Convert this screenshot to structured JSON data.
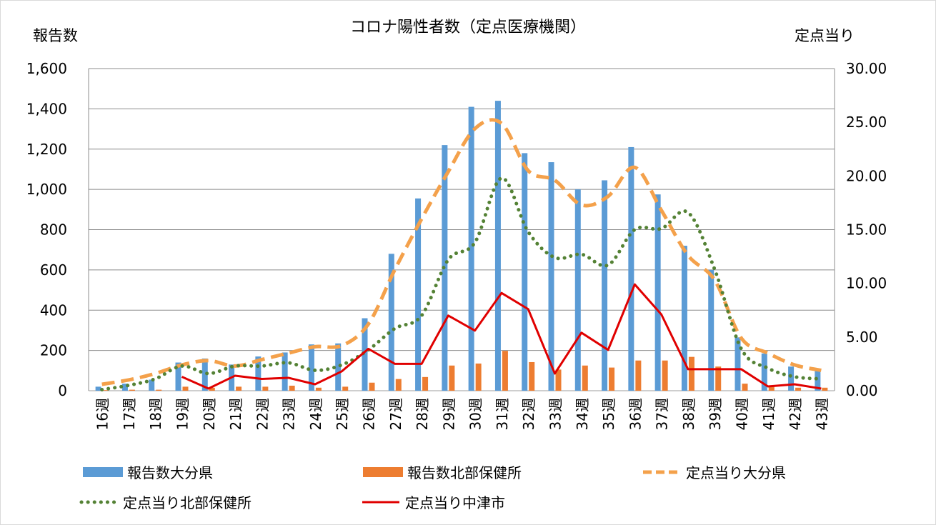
{
  "chart_data": {
    "type": "bar",
    "title": "コロナ陽性者数（定点医療機関）",
    "ylabel": "報告数",
    "y2label": "定点当り",
    "ylim": [
      0,
      1600
    ],
    "y2lim": [
      0,
      30
    ],
    "yticks": [
      "0",
      "200",
      "400",
      "600",
      "800",
      "1,000",
      "1,200",
      "1,400",
      "1,600"
    ],
    "y2ticks": [
      "0.00",
      "5.00",
      "10.00",
      "15.00",
      "20.00",
      "25.00",
      "30.00"
    ],
    "categories": [
      "16週",
      "17週",
      "18週",
      "19週",
      "20週",
      "21週",
      "22週",
      "23週",
      "24週",
      "25週",
      "26週",
      "27週",
      "28週",
      "29週",
      "30週",
      "31週",
      "32週",
      "33週",
      "34週",
      "35週",
      "36週",
      "37週",
      "38週",
      "39週",
      "40週",
      "41週",
      "42週",
      "43週"
    ],
    "series": [
      {
        "name": "報告数大分県",
        "kind": "bar",
        "axis": "left",
        "color": "#5B9BD5",
        "values": [
          20,
          35,
          55,
          140,
          160,
          130,
          170,
          190,
          230,
          235,
          360,
          680,
          955,
          1220,
          1410,
          1440,
          1180,
          1135,
          1000,
          1045,
          1210,
          975,
          720,
          600,
          265,
          185,
          120,
          110
        ]
      },
      {
        "name": "報告数北部保健所",
        "kind": "bar",
        "axis": "left",
        "color": "#ED7D31",
        "values": [
          3,
          5,
          5,
          20,
          15,
          20,
          20,
          25,
          15,
          20,
          40,
          58,
          68,
          125,
          135,
          198,
          142,
          105,
          125,
          115,
          150,
          150,
          168,
          120,
          35,
          20,
          15,
          15
        ]
      },
      {
        "name": "定点当り大分県",
        "kind": "line",
        "style": "dashed",
        "axis": "right",
        "color": "#F4A14B",
        "values": [
          0.6,
          1.0,
          1.6,
          2.4,
          2.8,
          2.3,
          2.9,
          3.5,
          4.1,
          4.2,
          6.2,
          11.3,
          16.0,
          20.4,
          24.4,
          24.9,
          20.5,
          19.6,
          17.3,
          18.1,
          20.8,
          16.8,
          12.6,
          10.3,
          4.9,
          3.5,
          2.4,
          1.9
        ]
      },
      {
        "name": "定点当り北部保健所",
        "kind": "line",
        "style": "dotted",
        "axis": "right",
        "color": "#548235",
        "values": [
          0.1,
          0.5,
          1.1,
          2.3,
          1.6,
          2.3,
          2.3,
          2.6,
          1.9,
          2.4,
          3.8,
          5.8,
          7.0,
          12.2,
          13.8,
          19.8,
          14.8,
          12.4,
          12.7,
          11.7,
          15.0,
          15.1,
          16.6,
          11.3,
          3.9,
          2.1,
          1.3,
          1.1
        ]
      },
      {
        "name": "定点当り中津市",
        "kind": "line",
        "style": "solid",
        "axis": "right",
        "color": "#E00000",
        "values": [
          null,
          null,
          null,
          1.3,
          0.2,
          1.4,
          1.1,
          1.2,
          0.6,
          1.8,
          3.9,
          2.5,
          2.5,
          7.0,
          5.6,
          9.1,
          7.6,
          1.6,
          5.4,
          3.8,
          9.9,
          7.1,
          2.0,
          2.0,
          2.0,
          0.4,
          0.6,
          0.2
        ]
      }
    ],
    "grid": true,
    "legend_position": "bottom"
  }
}
